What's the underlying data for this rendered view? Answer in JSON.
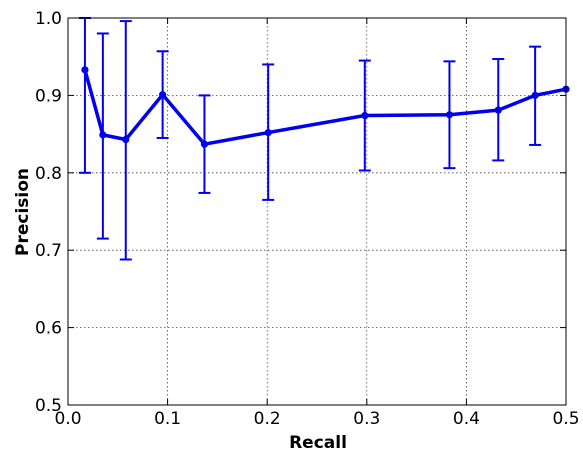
{
  "chart_data": {
    "type": "line",
    "title": "",
    "xlabel": "Recall",
    "ylabel": "Precision",
    "xlim": [
      0.0,
      0.5
    ],
    "ylim": [
      0.5,
      1.0
    ],
    "xticks": [
      "0.0",
      "0.1",
      "0.2",
      "0.3",
      "0.4",
      "0.5"
    ],
    "yticks": [
      "0.5",
      "0.6",
      "0.7",
      "0.8",
      "0.9",
      "1.0"
    ],
    "grid": true,
    "legend": "none",
    "series": [
      {
        "color": "#0000ee",
        "points": [
          {
            "x": 0.017,
            "y": 0.933,
            "err_low": 0.8,
            "err_high": 1.0
          },
          {
            "x": 0.035,
            "y": 0.849,
            "err_low": 0.715,
            "err_high": 0.98
          },
          {
            "x": 0.058,
            "y": 0.843,
            "err_low": 0.688,
            "err_high": 0.996
          },
          {
            "x": 0.095,
            "y": 0.901,
            "err_low": 0.845,
            "err_high": 0.957
          },
          {
            "x": 0.137,
            "y": 0.837,
            "err_low": 0.774,
            "err_high": 0.9
          },
          {
            "x": 0.201,
            "y": 0.852,
            "err_low": 0.765,
            "err_high": 0.94
          },
          {
            "x": 0.298,
            "y": 0.874,
            "err_low": 0.803,
            "err_high": 0.945
          },
          {
            "x": 0.383,
            "y": 0.875,
            "err_low": 0.806,
            "err_high": 0.944
          },
          {
            "x": 0.432,
            "y": 0.881,
            "err_low": 0.816,
            "err_high": 0.947
          },
          {
            "x": 0.469,
            "y": 0.9,
            "err_low": 0.836,
            "err_high": 0.963
          },
          {
            "x": 0.5,
            "y": 0.908
          }
        ]
      }
    ]
  }
}
